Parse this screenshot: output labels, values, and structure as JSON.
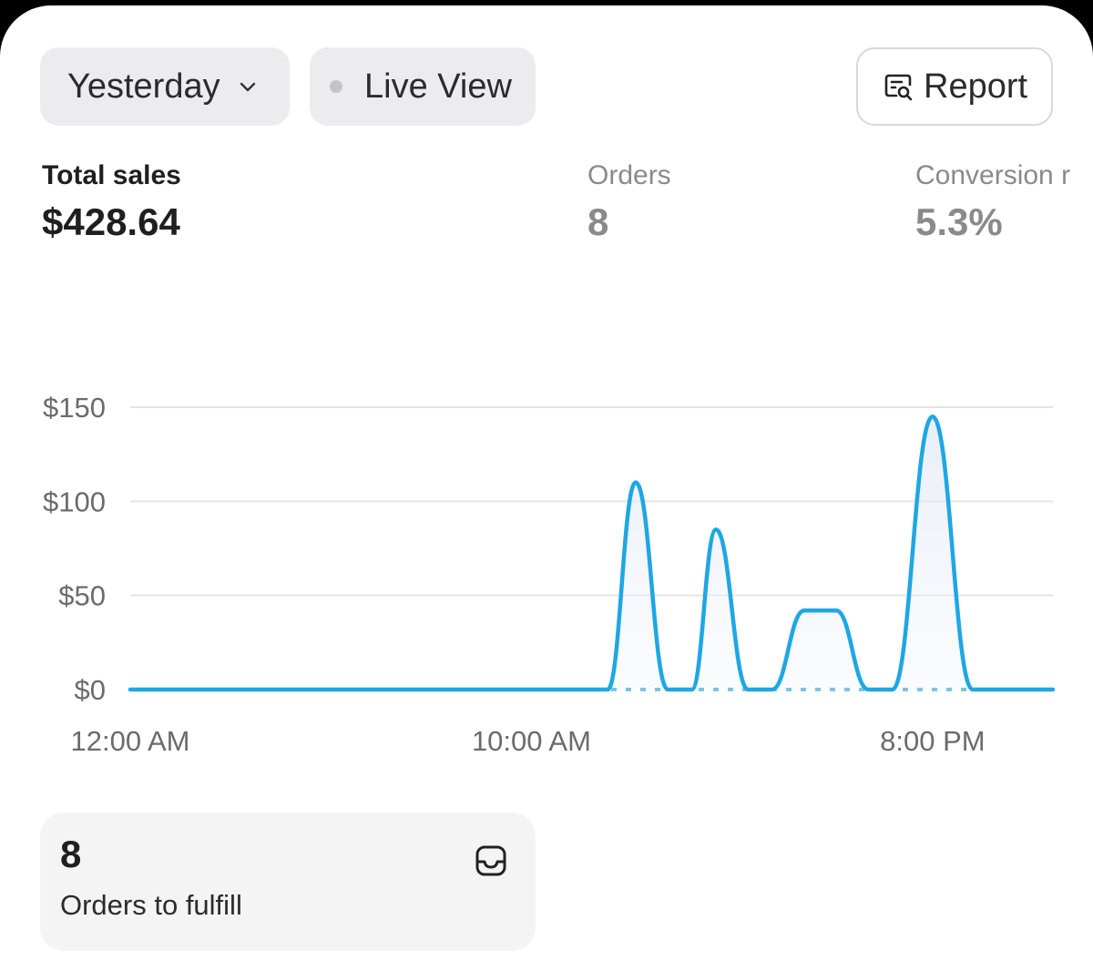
{
  "header": {
    "range_label": "Yesterday",
    "live_label": "Live View",
    "report_label": "Report"
  },
  "metrics": {
    "sales": {
      "label": "Total sales",
      "value": "$428.64"
    },
    "orders": {
      "label": "Orders",
      "value": "8"
    },
    "conversion": {
      "label": "Conversion r",
      "value": "5.3%"
    }
  },
  "chart_data": {
    "type": "line",
    "title": "",
    "xlabel": "",
    "ylabel": "",
    "y_ticks": [
      "$150",
      "$100",
      "$50",
      "$0"
    ],
    "y_tick_values": [
      150,
      100,
      50,
      0
    ],
    "x_ticks": [
      "12:00 AM",
      "10:00 AM",
      "8:00 PM"
    ],
    "x_tick_hours": [
      0,
      10,
      20
    ],
    "ylim": [
      0,
      150
    ],
    "xlim_hours": [
      0,
      23
    ],
    "grid": true,
    "series": [
      {
        "x_hours": [
          0,
          11.9,
          12.6,
          13.4,
          14.0,
          14.6,
          15.4,
          16.0,
          16.8,
          17.6,
          18.4,
          19.0,
          20.0,
          21.0,
          23.0
        ],
        "values": [
          0,
          0,
          110,
          0,
          0,
          85,
          0,
          0,
          42,
          42,
          0,
          0,
          145,
          0,
          0
        ],
        "color": "#1ea7e4"
      }
    ],
    "comparison_series_style": "dotted baseline"
  },
  "fulfill": {
    "count": "8",
    "label": "Orders to fulfill"
  },
  "colors": {
    "line": "#1ea7e4",
    "grid": "#e3e3e5",
    "pill_bg": "#ececee"
  }
}
